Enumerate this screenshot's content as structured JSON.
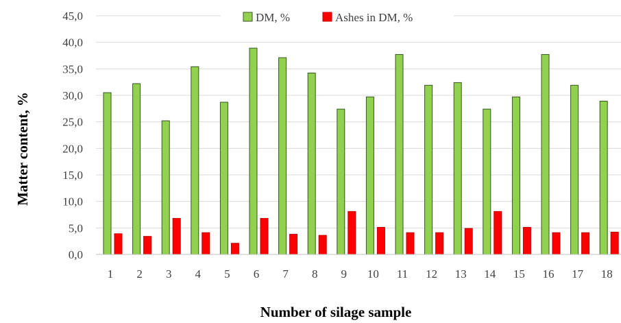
{
  "chart_data": {
    "type": "bar",
    "title": "",
    "xlabel": "Number of silage sample",
    "ylabel": "Matter content, %",
    "categories": [
      "1",
      "2",
      "3",
      "4",
      "5",
      "6",
      "7",
      "8",
      "9",
      "10",
      "11",
      "12",
      "13",
      "14",
      "15",
      "16",
      "17",
      "18"
    ],
    "series": [
      {
        "name": "DM, %",
        "color": "#92d050",
        "stroke": "#375623",
        "values": [
          30.5,
          32.2,
          25.2,
          35.4,
          28.7,
          38.9,
          37.1,
          34.2,
          27.4,
          29.7,
          37.7,
          31.9,
          32.4,
          27.4,
          29.7,
          37.7,
          31.9,
          28.9
        ]
      },
      {
        "name": "Ashes in DM, %",
        "color": "#ff0000",
        "stroke": "#c00000",
        "values": [
          3.9,
          3.4,
          6.8,
          4.1,
          2.1,
          6.8,
          3.8,
          3.6,
          8.1,
          5.1,
          4.1,
          4.1,
          4.9,
          8.1,
          5.1,
          4.1,
          4.1,
          4.2
        ]
      }
    ],
    "ylim": [
      0,
      45
    ],
    "yticks": [
      "0,0",
      "5,0",
      "10,0",
      "15,0",
      "20,0",
      "25,0",
      "30,0",
      "35,0",
      "40,0",
      "45,0"
    ],
    "ytick_values": [
      0,
      5,
      10,
      15,
      20,
      25,
      30,
      35,
      40,
      45
    ],
    "grid": true,
    "legend_position": "top-center"
  }
}
